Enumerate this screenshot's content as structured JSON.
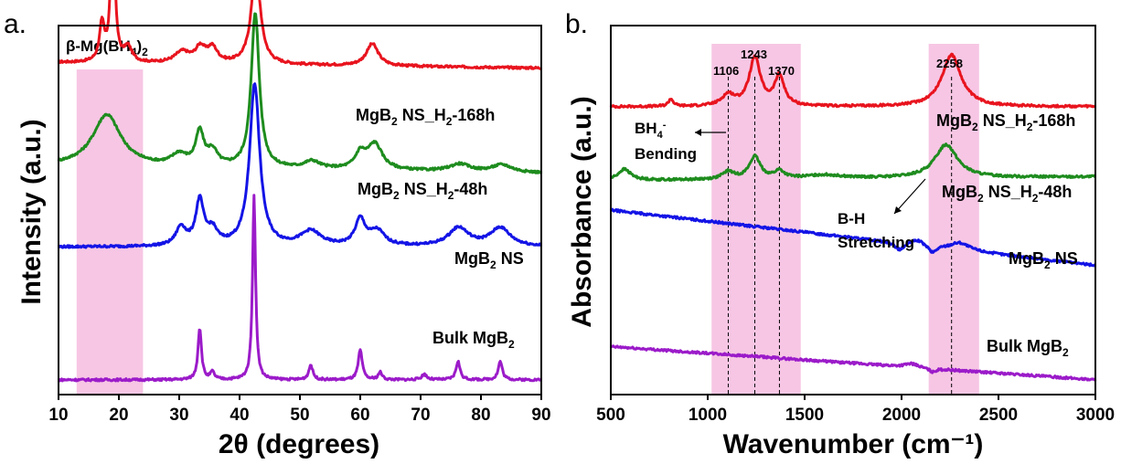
{
  "colors": {
    "red": "#e8141e",
    "green": "#1e8c1e",
    "blue": "#1414e6",
    "purple": "#9b1bc9",
    "band": "#f7c6e4"
  },
  "chart_data": [
    {
      "id": "xrd",
      "panel": "a.",
      "type": "line",
      "xlabel": "2θ (degrees)",
      "ylabel": "Intensity (a.u.)",
      "xlim": [
        10,
        90
      ],
      "xticks": [
        "10",
        "20",
        "30",
        "40",
        "50",
        "60",
        "70",
        "80",
        "90"
      ],
      "shaded_region": {
        "x": [
          13,
          24
        ],
        "label": "β-Mg(BH4)2"
      },
      "series": [
        {
          "name": "MgB2 NS_H2-168h",
          "color": "#e8141e",
          "baseline": 0.9,
          "slope": -0.015,
          "peaks": [
            [
              17.2,
              0.1,
              0.5
            ],
            [
              19.0,
              0.42,
              0.4
            ],
            [
              21.5,
              0.04,
              0.8
            ],
            [
              30.5,
              0.03,
              1.5
            ],
            [
              33.5,
              0.04,
              1.0
            ],
            [
              35.5,
              0.04,
              1.0
            ],
            [
              42.7,
              0.26,
              0.9
            ],
            [
              62.0,
              0.06,
              1.2
            ]
          ]
        },
        {
          "name": "MgB2 NS_H2-48h",
          "color": "#1e8c1e",
          "baseline": 0.62,
          "slope": -0.02,
          "peaks": [
            [
              18.0,
              0.14,
              2.8
            ],
            [
              30.0,
              0.03,
              1.5
            ],
            [
              33.4,
              0.09,
              0.8
            ],
            [
              35.5,
              0.04,
              1.0
            ],
            [
              42.6,
              0.42,
              0.8
            ],
            [
              52.0,
              0.02,
              1.5
            ],
            [
              60.0,
              0.04,
              1.0
            ],
            [
              62.4,
              0.07,
              1.5
            ],
            [
              76.5,
              0.02,
              2.0
            ],
            [
              83.5,
              0.02,
              2.0
            ]
          ]
        },
        {
          "name": "MgB2 NS",
          "color": "#1414e6",
          "baseline": 0.4,
          "slope": 0.0,
          "peaks": [
            [
              30.3,
              0.05,
              1.0
            ],
            [
              33.4,
              0.12,
              0.8
            ],
            [
              35.5,
              0.04,
              1.0
            ],
            [
              42.5,
              0.44,
              1.0
            ],
            [
              51.8,
              0.04,
              2.0
            ],
            [
              60.0,
              0.07,
              1.0
            ],
            [
              62.8,
              0.04,
              1.5
            ],
            [
              76.3,
              0.05,
              2.0
            ],
            [
              83.2,
              0.05,
              2.0
            ]
          ]
        },
        {
          "name": "Bulk MgB2",
          "color": "#9b1bc9",
          "baseline": 0.04,
          "slope": 0.0,
          "peaks": [
            [
              33.4,
              0.14,
              0.35
            ],
            [
              35.5,
              0.02,
              0.4
            ],
            [
              42.4,
              0.5,
              0.3
            ],
            [
              51.8,
              0.04,
              0.4
            ],
            [
              60.0,
              0.08,
              0.4
            ],
            [
              63.3,
              0.02,
              0.4
            ],
            [
              70.6,
              0.015,
              0.5
            ],
            [
              76.2,
              0.05,
              0.4
            ],
            [
              83.2,
              0.05,
              0.4
            ]
          ]
        }
      ]
    },
    {
      "id": "ftir",
      "panel": "b.",
      "type": "line",
      "xlabel": "Wavenumber (cm⁻¹)",
      "ylabel": "Absorbance (a.u.)",
      "xlim": [
        500,
        3000
      ],
      "xticks": [
        "500",
        "1000",
        "1500",
        "2000",
        "2500",
        "3000"
      ],
      "shaded_regions": [
        [
          1020,
          1480
        ],
        [
          2140,
          2400
        ]
      ],
      "reference_lines": [
        1106,
        1243,
        1370,
        2258
      ],
      "peak_labels": [
        "1106",
        "1243",
        "1370",
        "2258"
      ],
      "annotations": [
        "BH4- Bending",
        "B-H Stretching"
      ],
      "series": [
        {
          "name": "MgB2 NS_H2-168h",
          "color": "#e8141e",
          "baseline": 0.78,
          "slope": 0.0,
          "peaks": [
            [
              810,
              0.02,
              15
            ],
            [
              1106,
              0.03,
              40
            ],
            [
              1243,
              0.13,
              35
            ],
            [
              1370,
              0.08,
              30
            ],
            [
              2258,
              0.14,
              60
            ]
          ]
        },
        {
          "name": "MgB2 NS_H2-48h",
          "color": "#1e8c1e",
          "baseline": 0.58,
          "slope": 0.01,
          "peaks": [
            [
              570,
              0.03,
              40
            ],
            [
              1106,
              0.02,
              35
            ],
            [
              1243,
              0.06,
              35
            ],
            [
              1370,
              0.02,
              30
            ],
            [
              1600,
              0.01,
              120
            ],
            [
              2230,
              0.09,
              70
            ]
          ]
        },
        {
          "name": "MgB2 NS",
          "color": "#1414e6",
          "baseline": 0.5,
          "slope": -0.15,
          "peaks": [
            [
              1990,
              -0.02,
              30
            ],
            [
              2080,
              0.015,
              40
            ],
            [
              2160,
              -0.02,
              25
            ],
            [
              2300,
              0.02,
              60
            ]
          ]
        },
        {
          "name": "Bulk MgB2",
          "color": "#9b1bc9",
          "baseline": 0.13,
          "slope": -0.09,
          "peaks": [
            [
              2050,
              0.01,
              40
            ],
            [
              2160,
              -0.01,
              20
            ]
          ]
        }
      ]
    }
  ]
}
